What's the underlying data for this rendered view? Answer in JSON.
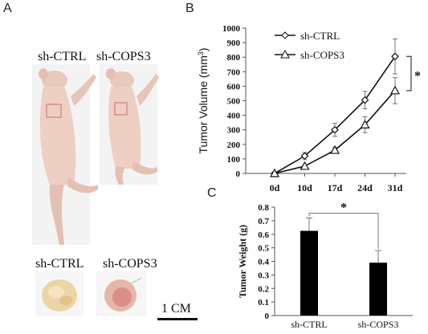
{
  "panels": {
    "a": {
      "letter": "A"
    },
    "b": {
      "letter": "B"
    },
    "c": {
      "letter": "C"
    }
  },
  "mice": {
    "ctrl_label": "sh-CTRL",
    "cops3_label": "sh-COPS3"
  },
  "tumors": {
    "ctrl_label": "sh-CTRL",
    "cops3_label": "sh-COPS3",
    "scale_bar_label": "1 CM"
  },
  "chart_data": [
    {
      "type": "line",
      "panel": "B",
      "title": "",
      "xlabel": "",
      "ylabel": "Tumor Volume (mm³)",
      "ylabel_main": "Tumor Volume (mm",
      "ylabel_sup": "3",
      "ylabel_close": ")",
      "x": [
        "0d",
        "10d",
        "17d",
        "24d",
        "31d"
      ],
      "ylim": [
        0,
        1000
      ],
      "yticks": [
        0,
        100,
        200,
        300,
        400,
        500,
        600,
        700,
        800,
        900,
        1000
      ],
      "grid": false,
      "legend": "top-left",
      "series": [
        {
          "name": "sh-CTRL",
          "marker": "diamond",
          "values": [
            0,
            120,
            300,
            505,
            805
          ],
          "errors": [
            0,
            25,
            45,
            60,
            120
          ]
        },
        {
          "name": "sh-COPS3",
          "marker": "triangle",
          "values": [
            0,
            50,
            160,
            335,
            570
          ],
          "errors": [
            0,
            10,
            20,
            55,
            90
          ]
        }
      ],
      "annotation": "*"
    },
    {
      "type": "bar",
      "panel": "C",
      "title": "",
      "xlabel": "",
      "ylabel": "Tumor Weight (g)",
      "categories": [
        "sh-CTRL",
        "sh-COPS3"
      ],
      "values": [
        0.625,
        0.39
      ],
      "errors": [
        0.095,
        0.09
      ],
      "ylim": [
        0,
        0.8
      ],
      "yticks": [
        "0",
        "0.1",
        "0.2",
        "0.3",
        "0.4",
        "0.5",
        "0.6",
        "0.7",
        "0.8"
      ],
      "grid": false,
      "annotation": "*"
    }
  ]
}
